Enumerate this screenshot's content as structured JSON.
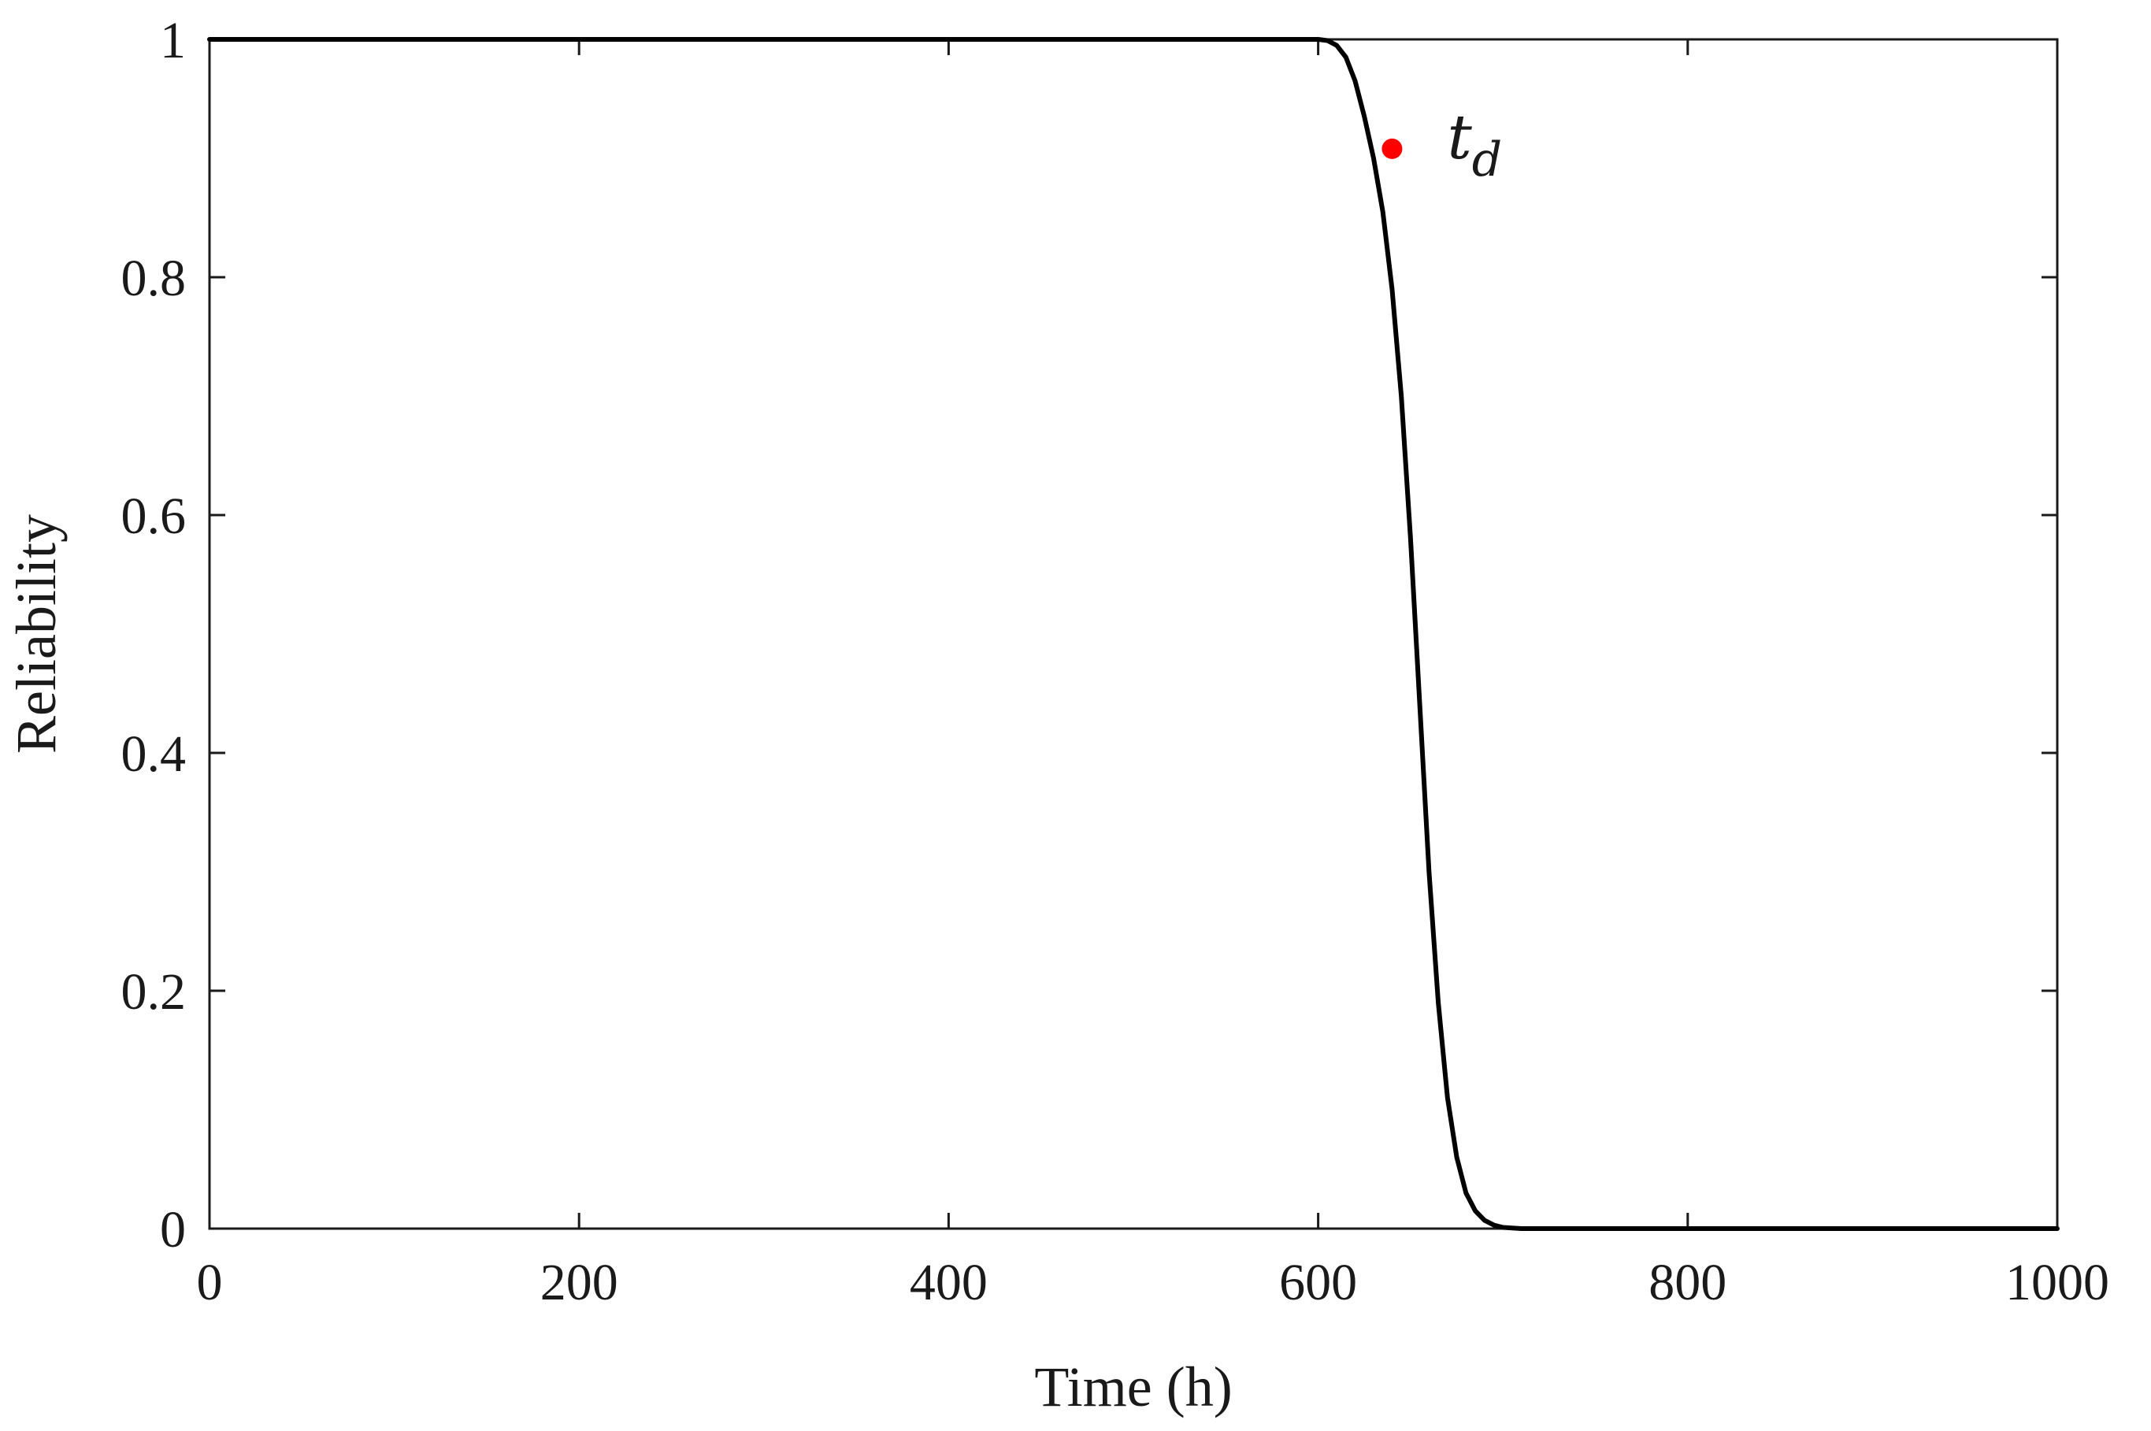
{
  "chart_data": {
    "type": "line",
    "title": "",
    "xlabel": "Time (h)",
    "ylabel": "Reliability",
    "xlim": [
      0,
      1000
    ],
    "ylim": [
      0,
      1
    ],
    "xticks": [
      0,
      200,
      400,
      600,
      800,
      1000
    ],
    "xtick_labels": [
      "0",
      "200",
      "400",
      "600",
      "800",
      "1000"
    ],
    "yticks": [
      0,
      0.2,
      0.4,
      0.6,
      0.8,
      1
    ],
    "ytick_labels": [
      "0",
      "0.2",
      "0.4",
      "0.6",
      "0.8",
      "1"
    ],
    "grid": false,
    "legend": "none",
    "series": [
      {
        "color": "#000000",
        "x": [
          0,
          100,
          200,
          300,
          400,
          500,
          600,
          605,
          610,
          615,
          620,
          625,
          630,
          635,
          640,
          645,
          650,
          655,
          660,
          665,
          670,
          675,
          680,
          685,
          690,
          695,
          700,
          705,
          710,
          720,
          740,
          800,
          900,
          1000
        ],
        "y": [
          1,
          1,
          1,
          1,
          1,
          1,
          1,
          0.999,
          0.995,
          0.985,
          0.965,
          0.935,
          0.9,
          0.855,
          0.79,
          0.7,
          0.58,
          0.44,
          0.3,
          0.19,
          0.11,
          0.06,
          0.03,
          0.015,
          0.007,
          0.003,
          0.001,
          0.0005,
          0,
          0,
          0,
          0,
          0,
          0
        ]
      }
    ],
    "annotations": [
      {
        "x": 640,
        "y": 0.908,
        "color": "#ff0000",
        "label": "t",
        "label_sub": "d"
      }
    ]
  }
}
